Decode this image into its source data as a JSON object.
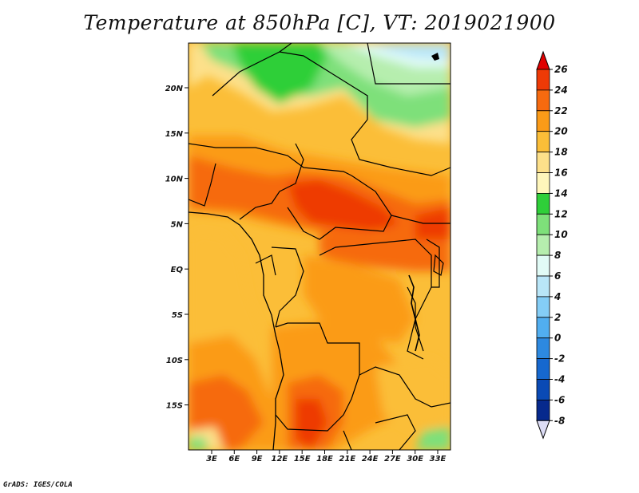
{
  "title": "Temperature at 850hPa [C], VT: 2019021900",
  "footer": "GrADS: IGES/COLA",
  "map": {
    "lon_ticks": [
      "3E",
      "6E",
      "9E",
      "12E",
      "15E",
      "18E",
      "21E",
      "24E",
      "27E",
      "30E",
      "33E"
    ],
    "lat_ticks": [
      "20N",
      "15N",
      "10N",
      "5N",
      "EQ",
      "5S",
      "10S",
      "15S"
    ]
  },
  "colorbar": {
    "labels": [
      "26",
      "24",
      "22",
      "20",
      "18",
      "16",
      "14",
      "12",
      "10",
      "8",
      "6",
      "4",
      "2",
      "0",
      "-2",
      "-4",
      "-6",
      "-8"
    ],
    "colors": [
      "#e00000",
      "#ee3a06",
      "#f66a0f",
      "#fb9b18",
      "#fbbe38",
      "#fde08a",
      "#fff6bb",
      "#2fcf39",
      "#7ee07a",
      "#b6eeae",
      "#e1fbf6",
      "#b9e6f8",
      "#84cdf6",
      "#51aef0",
      "#2d89e0",
      "#1668cf",
      "#0a4ab5",
      "#06298d",
      "#081462"
    ],
    "color_names": [
      "over-26",
      "24-26",
      "22-24",
      "20-22",
      "18-20",
      "16-18",
      "14-16",
      "12-14",
      "10-12",
      "8-10",
      "6-8",
      "4-6",
      "2-4",
      "0-2",
      "-2-0",
      "-4--2",
      "-6--4",
      "-8--6",
      "under-8"
    ]
  }
}
